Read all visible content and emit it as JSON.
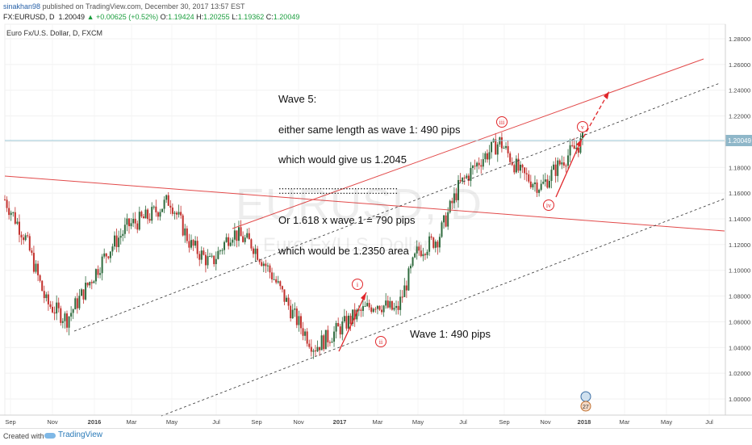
{
  "header": {
    "author": "sinakhan98",
    "published_text": "published on TradingView.com, December 30, 2017 13:57 EST",
    "symbol": "FX:EURUSD, D",
    "last": "1.20049",
    "change": "▲ +0.00625 (+0.52%)",
    "open_label": "O:",
    "open": "1.19424",
    "high_label": "H:",
    "high": "1.20255",
    "low_label": "L:",
    "low": "1.19362",
    "close_label": "C:",
    "close": "1.20049"
  },
  "chart_title": "Euro Fx/U.S. Dollar, D, FXCM",
  "watermark": {
    "main": "EURUSD, D",
    "sub": "Euro Fx/U.S. Dollar"
  },
  "annotation_lines": [
    "Wave 5:",
    "either same length as wave 1: 490 pips",
    "which would give us 1.2045",
    ":::::::::::::::::::::::::::::::::::::::::",
    "Or 1.618 x wave 1 = 790 pips",
    "which would be 1.2350 area"
  ],
  "wave1_label": "Wave 1: 490 pips",
  "wave_labels": [
    "i",
    "ii",
    "iii",
    "iv",
    "v"
  ],
  "price_marker": "1.20049",
  "badge_number": "27",
  "footer": {
    "created_with": "Created with",
    "brand": "TradingView"
  },
  "colors": {
    "up": "#2f6b3e",
    "down": "#c2302c",
    "wave": "#e0262a",
    "channel": "#e24a4a",
    "dash": "#333333"
  },
  "chart_data": {
    "type": "candlestick",
    "title": "Euro Fx/U.S. Dollar, D, FXCM",
    "x_tick_labels": [
      "Sep",
      "Nov",
      "2016",
      "Mar",
      "May",
      "Jul",
      "Sep",
      "Nov",
      "2017",
      "Mar",
      "May",
      "Jul",
      "Sep",
      "Nov",
      "2018",
      "Mar",
      "May",
      "Jul"
    ],
    "y_tick_labels": [
      "1.28000",
      "1.26000",
      "1.24000",
      "1.22000",
      "1.20000",
      "1.18000",
      "1.16000",
      "1.14000",
      "1.12000",
      "1.10000",
      "1.08000",
      "1.06000",
      "1.04000",
      "1.02000",
      "1.00000"
    ],
    "ylim": [
      0.985,
      1.29
    ],
    "price_path": [
      [
        "Sep",
        1.155
      ],
      [
        "Oct",
        1.125
      ],
      [
        "Nov",
        1.075
      ],
      [
        "Dec",
        1.062
      ],
      [
        "2016",
        1.088
      ],
      [
        "Feb",
        1.115
      ],
      [
        "Mar",
        1.135
      ],
      [
        "Apr",
        1.142
      ],
      [
        "May",
        1.155
      ],
      [
        "Jun",
        1.12
      ],
      [
        "Jul",
        1.105
      ],
      [
        "Aug",
        1.13
      ],
      [
        "Sep",
        1.12
      ],
      [
        "Oct",
        1.095
      ],
      [
        "Nov",
        1.065
      ],
      [
        "Dec",
        1.04
      ],
      [
        "2017",
        1.052
      ],
      [
        "Feb",
        1.065
      ],
      [
        "Mar",
        1.075
      ],
      [
        "Apr",
        1.068
      ],
      [
        "May",
        1.115
      ],
      [
        "Jun",
        1.125
      ],
      [
        "Jul",
        1.165
      ],
      [
        "Aug",
        1.185
      ],
      [
        "Sep",
        1.2
      ],
      [
        "Oct",
        1.175
      ],
      [
        "Nov",
        1.165
      ],
      [
        "Dec",
        1.185
      ],
      [
        "2018",
        1.2005
      ]
    ],
    "wave_points": [
      {
        "label": "i",
        "price": 1.083
      },
      {
        "label": "ii",
        "price": 1.051
      },
      {
        "label": "iii",
        "price": 1.209
      },
      {
        "label": "iv",
        "price": 1.155
      },
      {
        "label": "v",
        "price": 1.2005
      }
    ],
    "current_price": 1.20049,
    "grid": true
  }
}
